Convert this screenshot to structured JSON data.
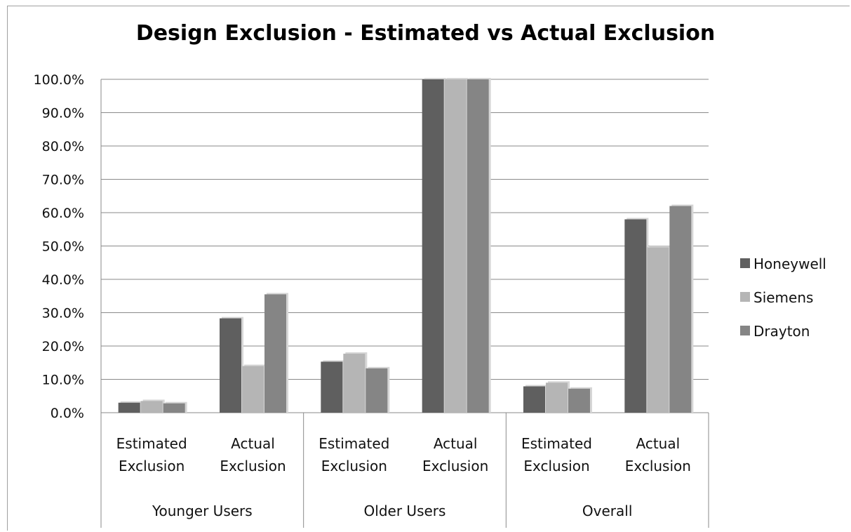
{
  "chart_data": {
    "type": "bar",
    "title": "Design Exclusion - Estimated vs Actual Exclusion",
    "xlabel": "",
    "ylabel": "",
    "ylim": [
      0,
      100
    ],
    "y_ticks": [
      "0.0%",
      "10.0%",
      "20.0%",
      "30.0%",
      "40.0%",
      "50.0%",
      "60.0%",
      "70.0%",
      "80.0%",
      "90.0%",
      "100.0%"
    ],
    "groups": [
      {
        "label": "Younger Users",
        "categories": [
          [
            "Estimated",
            "Exclusion"
          ],
          [
            "Actual",
            "Exclusion"
          ]
        ]
      },
      {
        "label": "Older Users",
        "categories": [
          [
            "Estimated",
            "Exclusion"
          ],
          [
            "Actual",
            "Exclusion"
          ]
        ]
      },
      {
        "label": "Overall",
        "categories": [
          [
            "Estimated",
            "Exclusion"
          ],
          [
            "Actual",
            "Exclusion"
          ]
        ]
      }
    ],
    "series": [
      {
        "name": "Honeywell",
        "color": "#5f5f5f",
        "values": [
          3.0,
          28.3,
          15.3,
          100.0,
          7.9,
          58.0
        ]
      },
      {
        "name": "Siemens",
        "color": "#b5b5b5",
        "values": [
          3.5,
          14.0,
          17.7,
          100.0,
          9.0,
          49.6
        ]
      },
      {
        "name": "Drayton",
        "color": "#858585",
        "values": [
          2.8,
          35.5,
          13.3,
          100.0,
          7.2,
          62.0
        ]
      }
    ],
    "grid": true,
    "legend_position": "right"
  }
}
